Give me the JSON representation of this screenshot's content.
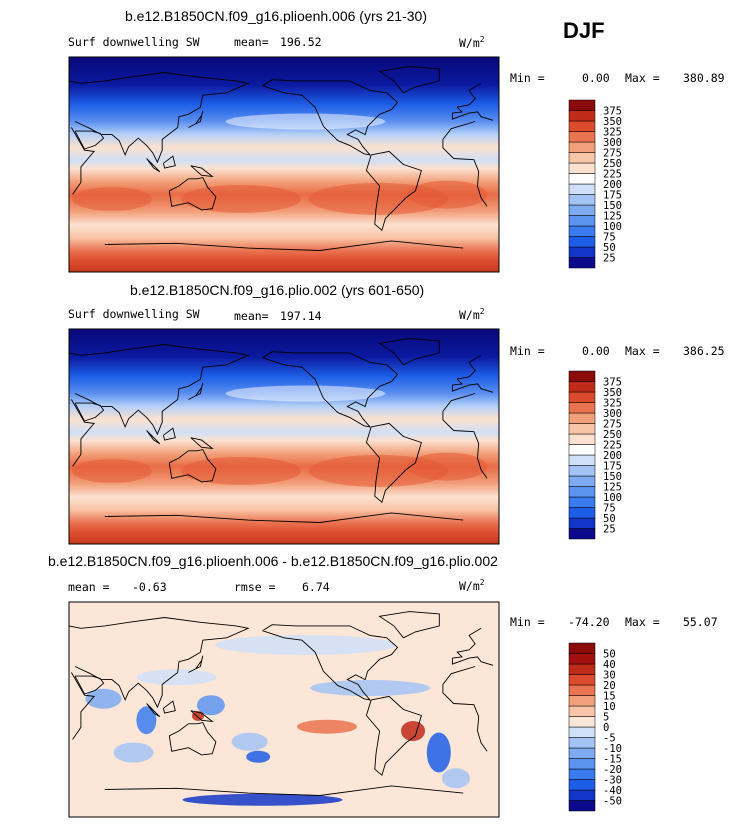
{
  "season": "DJF",
  "units_main": "W/m",
  "units_sup": "2",
  "panels": [
    {
      "title": "b.e12.B1850CN.f09_g16.plioenh.006 (yrs 21-30)",
      "left_label": "Surf downwelling SW",
      "stat1_label": "mean=",
      "stat1_value": "196.52",
      "min_label": "Min =",
      "min_value": "0.00",
      "max_label": "Max =",
      "max_value": "380.89"
    },
    {
      "title": "b.e12.B1850CN.f09_g16.plio.002 (yrs 601-650)",
      "left_label": "Surf downwelling SW",
      "stat1_label": "mean=",
      "stat1_value": "197.14",
      "min_label": "Min =",
      "min_value": "0.00",
      "max_label": "Max =",
      "max_value": "386.25"
    },
    {
      "title": "b.e12.B1850CN.f09_g16.plioenh.006 - b.e12.B1850CN.f09_g16.plio.002",
      "stat1_label": "mean =",
      "stat1_value": "-0.63",
      "stat2_label": "rmse =",
      "stat2_value": "6.74",
      "min_label": "Min =",
      "min_value": "-74.20",
      "max_label": "Max =",
      "max_value": "55.07"
    }
  ],
  "chart_data": [
    {
      "type": "heatmap",
      "title": "b.e12.B1850CN.f09_g16.plioenh.006 (yrs 21-30)",
      "variable": "Surf downwelling SW",
      "units": "W/m2",
      "mean": 196.52,
      "min": 0.0,
      "max": 380.89,
      "colorbar_levels": [
        25,
        50,
        75,
        100,
        125,
        150,
        175,
        200,
        225,
        250,
        275,
        300,
        325,
        350,
        375
      ],
      "colorbar_colors": [
        "#0a0a8a",
        "#1336c8",
        "#1d5ee8",
        "#3a7bf0",
        "#5c93f0",
        "#7eaaf2",
        "#a3c3f5",
        "#cfe0f8",
        "#ffffff",
        "#fbe1cf",
        "#f8c5a6",
        "#f2a07a",
        "#ea7350",
        "#dc4b2c",
        "#c02a18",
        "#8b0a0a"
      ]
    },
    {
      "type": "heatmap",
      "title": "b.e12.B1850CN.f09_g16.plio.002 (yrs 601-650)",
      "variable": "Surf downwelling SW",
      "units": "W/m2",
      "mean": 197.14,
      "min": 0.0,
      "max": 386.25,
      "colorbar_levels": [
        25,
        50,
        75,
        100,
        125,
        150,
        175,
        200,
        225,
        250,
        275,
        300,
        325,
        350,
        375
      ],
      "colorbar_colors": [
        "#0a0a8a",
        "#1336c8",
        "#1d5ee8",
        "#3a7bf0",
        "#5c93f0",
        "#7eaaf2",
        "#a3c3f5",
        "#cfe0f8",
        "#ffffff",
        "#fbe1cf",
        "#f8c5a6",
        "#f2a07a",
        "#ea7350",
        "#dc4b2c",
        "#c02a18",
        "#8b0a0a"
      ]
    },
    {
      "type": "heatmap",
      "title": "b.e12.B1850CN.f09_g16.plioenh.006 - b.e12.B1850CN.f09_g16.plio.002",
      "units": "W/m2",
      "mean": -0.63,
      "rmse": 6.74,
      "min": -74.2,
      "max": 55.07,
      "colorbar_levels": [
        -50,
        -40,
        -30,
        -20,
        -15,
        -10,
        -5,
        0,
        5,
        10,
        15,
        20,
        30,
        40,
        50
      ],
      "colorbar_colors": [
        "#0a0a8a",
        "#1336c8",
        "#1d5ee8",
        "#3a7bf0",
        "#5c93f0",
        "#7eaaf2",
        "#a3c3f5",
        "#cfe0f8",
        "#fbe6d8",
        "#f8c5a6",
        "#f2a07a",
        "#ea7350",
        "#dc4b2c",
        "#c02a18",
        "#a31010",
        "#8b0a0a"
      ]
    }
  ]
}
